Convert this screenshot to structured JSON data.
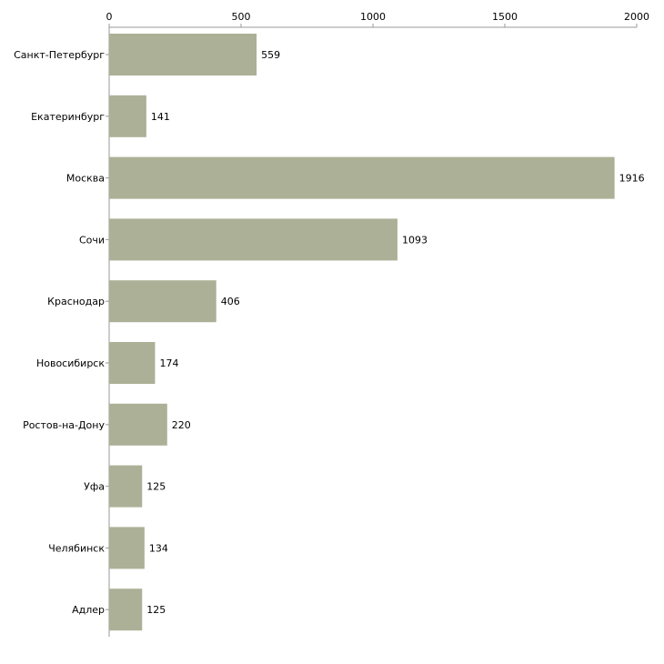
{
  "chart_data": {
    "type": "bar",
    "orientation": "horizontal",
    "title": "",
    "xlabel": "",
    "ylabel": "",
    "categories": [
      "Санкт-Петербург",
      "Екатеринбург",
      "Москва",
      "Сочи",
      "Краснодар",
      "Новосибирск",
      "Ростов-на-Дону",
      "Уфа",
      "Челябинск",
      "Адлер"
    ],
    "values": [
      559,
      141,
      1916,
      1093,
      406,
      174,
      220,
      125,
      134,
      125
    ],
    "xlim": [
      0,
      2000
    ],
    "xticks": [
      0,
      500,
      1000,
      1500,
      2000
    ],
    "tick_position": "top",
    "grid": false,
    "legend": "none",
    "bar_color": "#acb096"
  }
}
